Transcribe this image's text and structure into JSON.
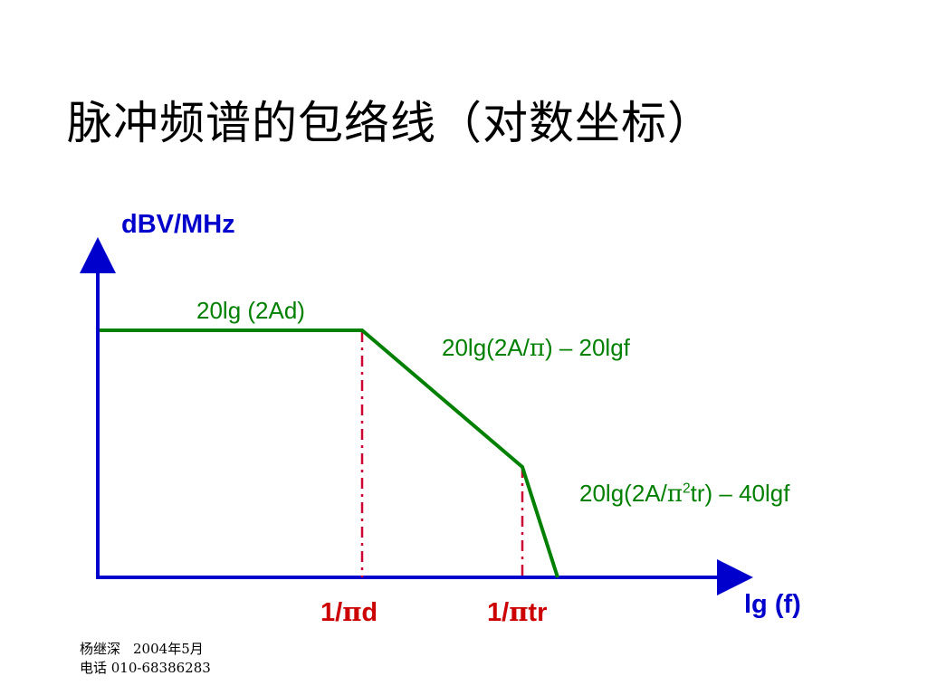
{
  "title": "脉冲频谱的包络线（对数坐标）",
  "axes": {
    "y_label": "dBV/MHz",
    "x_label": "lg (f)"
  },
  "segments": {
    "flat": "20lg (2Ad)",
    "slope1_prefix": "20lg(2A/",
    "slope1_pi": "π",
    "slope1_suffix": ") – 20lgf",
    "slope2_prefix": "20lg(2A/",
    "slope2_pi": "π",
    "slope2_sup": "2",
    "slope2_suffix": "tr) – 40lgf"
  },
  "ticks": {
    "t1_prefix": "1/",
    "t1_pi": "π",
    "t1_suffix": "d",
    "t2_prefix": "1/",
    "t2_pi": "π",
    "t2_suffix": "tr"
  },
  "footer": {
    "author": "杨继深",
    "date": "2004年5月",
    "phone": "电话 010-68386283"
  },
  "colors": {
    "axis": "#0000cc",
    "curve": "#008000",
    "marker": "#cc0033"
  }
}
